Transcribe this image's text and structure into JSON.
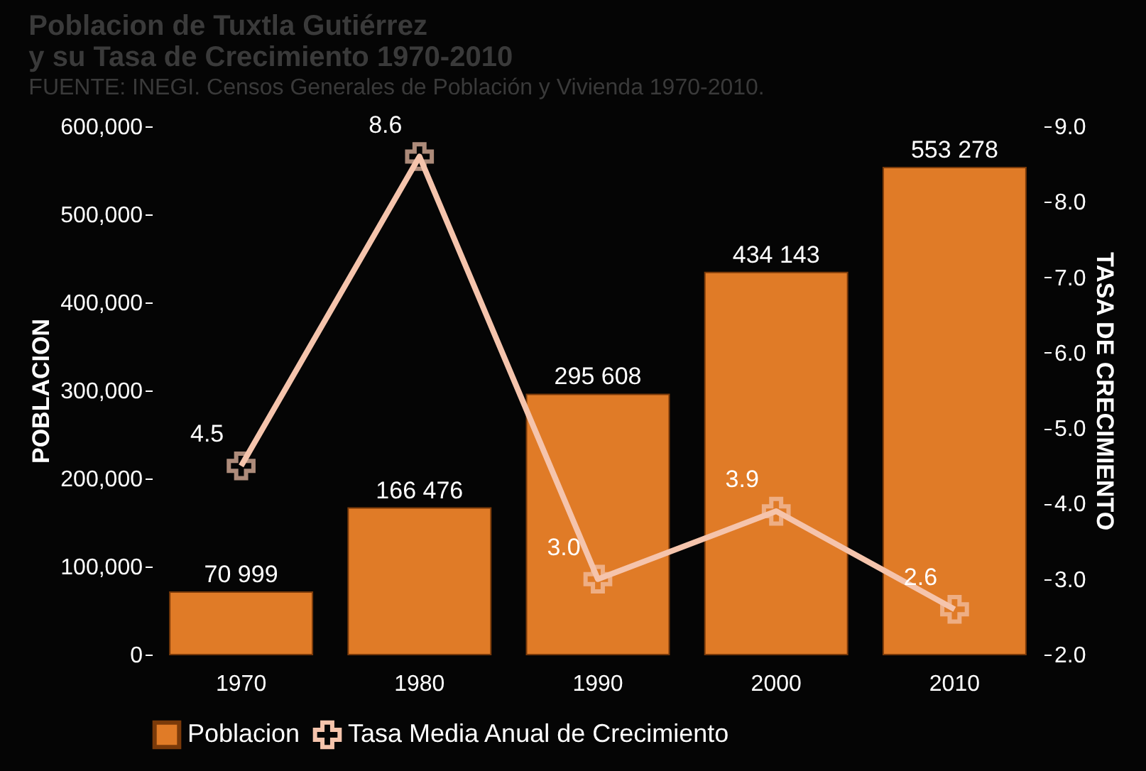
{
  "chart_data": {
    "type": "bar",
    "title": "Poblacion de Tuxtla Gutiérrez\ny su Tasa de Crecimiento 1970-2010",
    "ylabel": "POBLACION",
    "y2label": "TASA DE CRECIMIENTO",
    "categories": [
      "1970",
      "1980",
      "1990",
      "2000",
      "2010"
    ],
    "series": [
      {
        "name": "Poblacion",
        "color": "#e07b27",
        "values": [
          70999,
          166476,
          295608,
          434143,
          553278
        ],
        "value_labels": [
          "70 999",
          "166 476",
          "295 608",
          "434 143",
          "553 278"
        ]
      },
      {
        "name": "Tasa Media Anual de Crecimiento",
        "type": "line",
        "axis": "y2",
        "color": "#f5c4ac",
        "marker": "cross",
        "values": [
          4.5,
          8.6,
          3.0,
          3.9,
          2.6
        ],
        "value_labels": [
          "4.5",
          "8.6",
          "3.0",
          "3.9",
          "2.6"
        ]
      }
    ],
    "ylim": [
      0,
      600000
    ],
    "yticks": [
      0,
      {
        "value": 100000,
        "label": "100,000"
      },
      {
        "value": 200000,
        "label": "200,000"
      },
      {
        "value": 300000,
        "label": "300,000"
      },
      {
        "value": 400000,
        "label": "400,000"
      },
      {
        "value": 500000,
        "label": "500,000"
      },
      {
        "value": 600000,
        "label": "600,000"
      }
    ],
    "y2lim": [
      2.0,
      9.0
    ],
    "y2ticks": [
      {
        "value": 2,
        "label": "2.0"
      },
      {
        "value": 3,
        "label": "3.0"
      },
      {
        "value": 4,
        "label": "4.0"
      },
      {
        "value": 5,
        "label": "5.0"
      },
      {
        "value": 6,
        "label": "6.0"
      },
      {
        "value": 7,
        "label": "7.0"
      },
      {
        "value": 8,
        "label": "8.0"
      },
      {
        "value": 9,
        "label": "9.0"
      }
    ],
    "grid": false,
    "legend": "bottom",
    "annotations": [
      "FUENTE: INEGI. Censos Generales de Población y Vivienda 1970-2010."
    ]
  }
}
